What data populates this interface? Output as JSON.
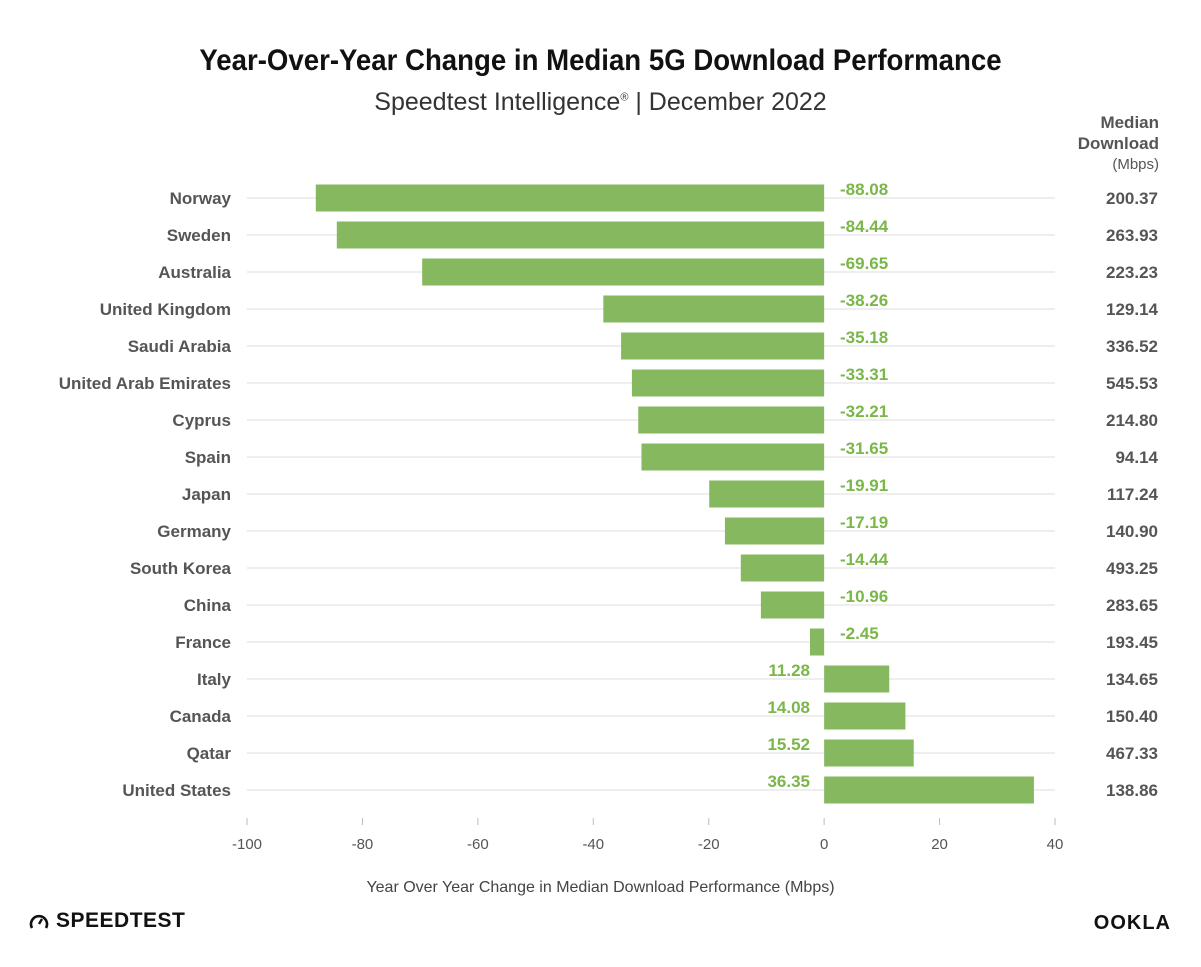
{
  "chart_data": {
    "type": "bar",
    "orientation": "horizontal",
    "title": "Year-Over-Year Change in Median 5G Download Performance",
    "subtitle_main": "Speedtest Intelligence",
    "subtitle_mark": "®",
    "subtitle_rest": " | December 2022",
    "xlabel": "Year Over Year Change in Median Download Performance (Mbps)",
    "xlim": [
      -100,
      40
    ],
    "xticks": [
      -100,
      -80,
      -60,
      -40,
      -20,
      0,
      20,
      40
    ],
    "grid": true,
    "bar_color": "#86b85f",
    "label_color": "#7ab648",
    "categories": [
      "Norway",
      "Sweden",
      "Australia",
      "United Kingdom",
      "Saudi Arabia",
      "United Arab Emirates",
      "Cyprus",
      "Spain",
      "Japan",
      "Germany",
      "South Korea",
      "China",
      "France",
      "Italy",
      "Canada",
      "Qatar",
      "United States"
    ],
    "values": [
      -88.08,
      -84.44,
      -69.65,
      -38.26,
      -35.18,
      -33.31,
      -32.21,
      -31.65,
      -19.91,
      -17.19,
      -14.44,
      -10.96,
      -2.45,
      11.28,
      14.08,
      15.52,
      36.35
    ],
    "value_labels": [
      "-88.08",
      "-84.44",
      "-69.65",
      "-38.26",
      "-35.18",
      "-33.31",
      "-32.21",
      "-31.65",
      "-19.91",
      "-17.19",
      "-14.44",
      "-10.96",
      "-2.45",
      "11.28",
      "14.08",
      "15.52",
      "36.35"
    ],
    "median_download_header": {
      "line1": "Median",
      "line2": "Download",
      "unit": "(Mbps)"
    },
    "median_download": [
      "200.37",
      "263.93",
      "223.23",
      "129.14",
      "336.52",
      "545.53",
      "214.80",
      "94.14",
      "117.24",
      "140.90",
      "493.25",
      "283.65",
      "193.45",
      "134.65",
      "150.40",
      "467.33",
      "138.86"
    ]
  },
  "logos": {
    "left": "SPEEDTEST",
    "right": "OOKLA"
  }
}
